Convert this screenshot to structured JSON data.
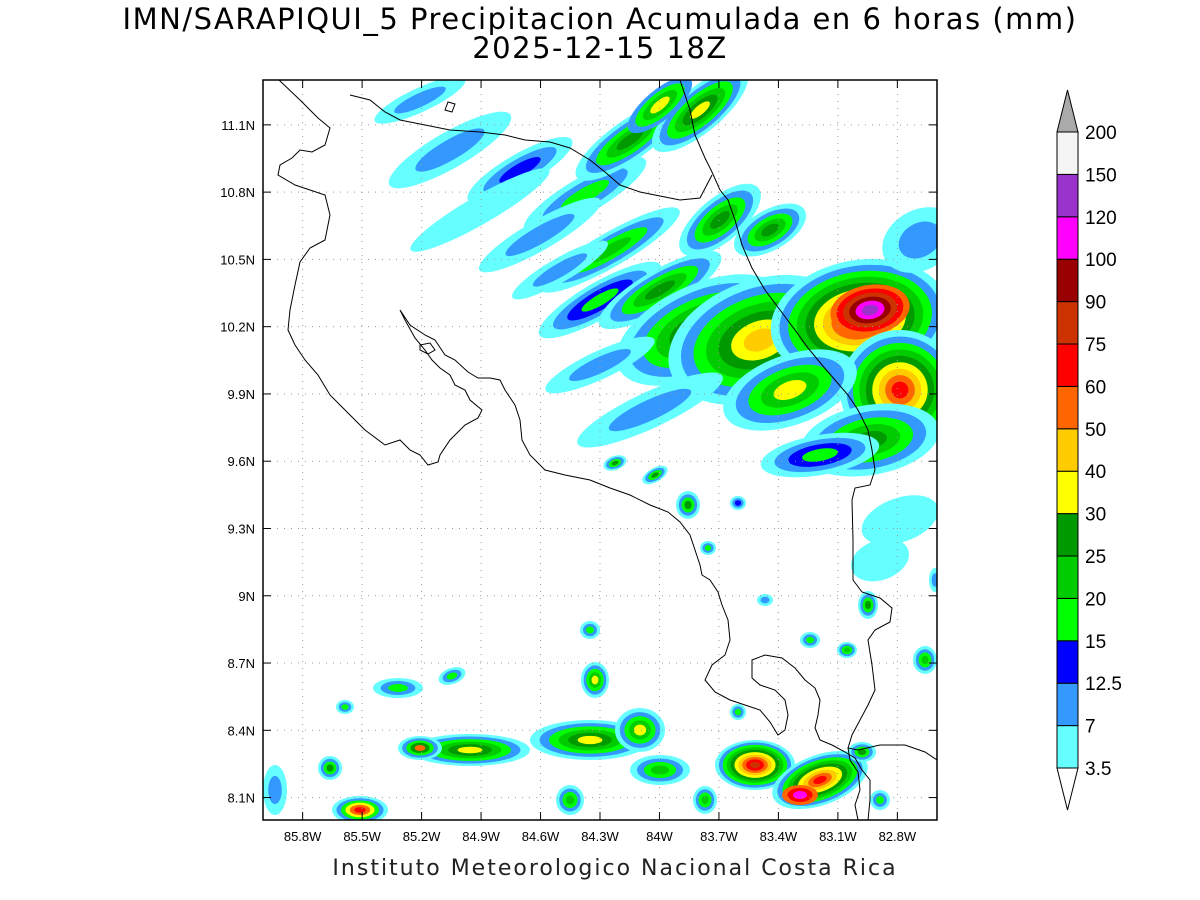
{
  "title": {
    "line1": "IMN/SARAPIQUI_5 Precipitacion Acumulada en 6 horas (mm)",
    "line2": "2025-12-15 18Z"
  },
  "footer": "Instituto Meteorologico Nacional Costa Rica",
  "map": {
    "lon_range": [
      -86.0,
      -82.6
    ],
    "lat_range": [
      8.0,
      11.3
    ],
    "lon_ticks": [
      "85.8W",
      "85.5W",
      "85.2W",
      "84.9W",
      "84.6W",
      "84.3W",
      "84W",
      "83.7W",
      "83.4W",
      "83.1W",
      "82.8W"
    ],
    "lat_ticks": [
      "11.1N",
      "10.8N",
      "10.5N",
      "10.2N",
      "9.9N",
      "9.6N",
      "9.3N",
      "9N",
      "8.7N",
      "8.4N",
      "8.1N"
    ]
  },
  "legend": {
    "labels": [
      "3.5",
      "7",
      "12.5",
      "15",
      "20",
      "25",
      "30",
      "40",
      "50",
      "60",
      "75",
      "90",
      "100",
      "120",
      "150",
      "200"
    ],
    "colors": [
      "#66ffff",
      "#3399ff",
      "#0000ff",
      "#00ff00",
      "#00cc00",
      "#009900",
      "#ffff00",
      "#ffcc00",
      "#ff6600",
      "#ff0000",
      "#cc3300",
      "#990000",
      "#ff00ff",
      "#9933cc",
      "#f5f5f5",
      "#aaaaaa"
    ]
  }
}
